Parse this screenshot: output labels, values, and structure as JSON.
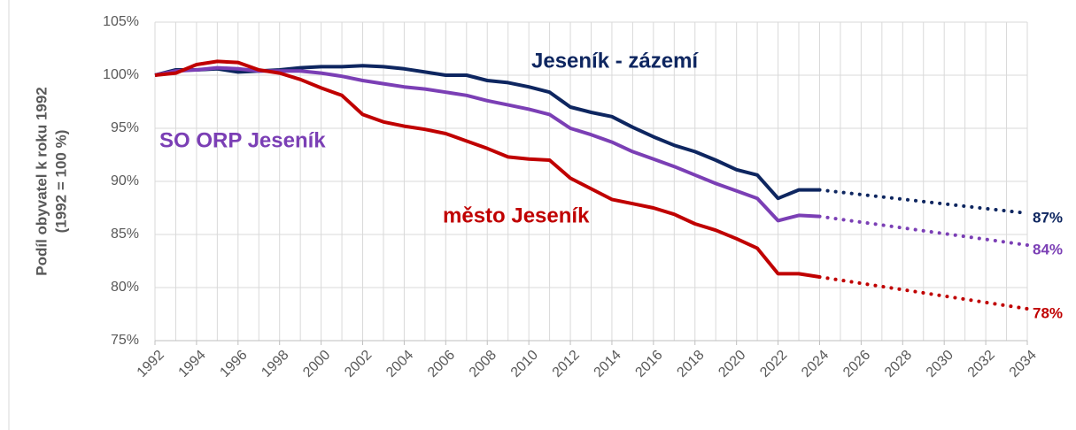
{
  "chart_data": {
    "type": "line",
    "ylabel": [
      "Podíl obyvatel k roku 1992",
      "(1992 = 100 %)"
    ],
    "x": [
      1992,
      1993,
      1994,
      1995,
      1996,
      1997,
      1998,
      1999,
      2000,
      2001,
      2002,
      2003,
      2004,
      2005,
      2006,
      2007,
      2008,
      2009,
      2010,
      2011,
      2012,
      2013,
      2014,
      2015,
      2016,
      2017,
      2018,
      2019,
      2020,
      2021,
      2022,
      2023,
      2024
    ],
    "projection_x": [
      2024,
      2034
    ],
    "xlim": [
      1992,
      2034
    ],
    "xticks": [
      1992,
      1994,
      1996,
      1998,
      2000,
      2002,
      2004,
      2006,
      2008,
      2010,
      2012,
      2014,
      2016,
      2018,
      2020,
      2022,
      2024,
      2026,
      2028,
      2030,
      2032,
      2034
    ],
    "xgrid": [
      1992,
      1993,
      1994,
      1995,
      1996,
      1997,
      1998,
      1999,
      2000,
      2001,
      2002,
      2003,
      2004,
      2005,
      2006,
      2007,
      2008,
      2009,
      2010,
      2011,
      2012,
      2013,
      2014,
      2015,
      2016,
      2017,
      2018,
      2019,
      2020,
      2021,
      2022,
      2023,
      2024,
      2025,
      2026,
      2027,
      2028,
      2029,
      2030,
      2031,
      2032,
      2033,
      2034
    ],
    "ylim": [
      75,
      105
    ],
    "yticks": [
      {
        "value": 75,
        "label": "75%"
      },
      {
        "value": 80,
        "label": "80%"
      },
      {
        "value": 85,
        "label": "85%"
      },
      {
        "value": 90,
        "label": "90%"
      },
      {
        "value": 95,
        "label": "95%"
      },
      {
        "value": 100,
        "label": "100%"
      },
      {
        "value": 105,
        "label": "105%"
      }
    ],
    "grid": true,
    "series": [
      {
        "name": "Jeseník - zázemí",
        "color": "#0e2660",
        "values": [
          100,
          100.5,
          100.5,
          100.6,
          100.3,
          100.4,
          100.5,
          100.7,
          100.8,
          100.8,
          100.9,
          100.8,
          100.6,
          100.3,
          100.0,
          100.0,
          99.5,
          99.3,
          98.9,
          98.4,
          97.0,
          96.5,
          96.1,
          95.1,
          94.2,
          93.4,
          92.8,
          92.0,
          91.1,
          90.6,
          88.4,
          89.2,
          89.2
        ],
        "projection": [
          89.2,
          87
        ],
        "projection_labels": [
          null,
          "87%"
        ]
      },
      {
        "name": "SO ORP Jeseník",
        "color": "#7b3fb5",
        "values": [
          100,
          100.4,
          100.5,
          100.7,
          100.6,
          100.4,
          100.4,
          100.4,
          100.2,
          99.9,
          99.5,
          99.2,
          98.9,
          98.7,
          98.4,
          98.1,
          97.6,
          97.2,
          96.8,
          96.3,
          95.0,
          94.4,
          93.7,
          92.8,
          92.1,
          91.4,
          90.6,
          89.8,
          89.1,
          88.4,
          86.3,
          86.8,
          86.7
        ],
        "projection": [
          86.7,
          84
        ],
        "projection_labels": [
          null,
          "84%"
        ]
      },
      {
        "name": "město Jeseník",
        "color": "#c00000",
        "values": [
          100,
          100.2,
          101.0,
          101.3,
          101.2,
          100.5,
          100.2,
          99.6,
          98.8,
          98.1,
          96.3,
          95.6,
          95.2,
          94.9,
          94.5,
          93.8,
          93.1,
          92.3,
          92.1,
          92.0,
          90.3,
          89.3,
          88.3,
          87.9,
          87.5,
          86.9,
          86.0,
          85.4,
          84.6,
          83.7,
          81.3,
          81.3,
          81.0
        ],
        "projection": [
          81.0,
          78
        ],
        "projection_labels": [
          null,
          "78%"
        ]
      }
    ]
  }
}
